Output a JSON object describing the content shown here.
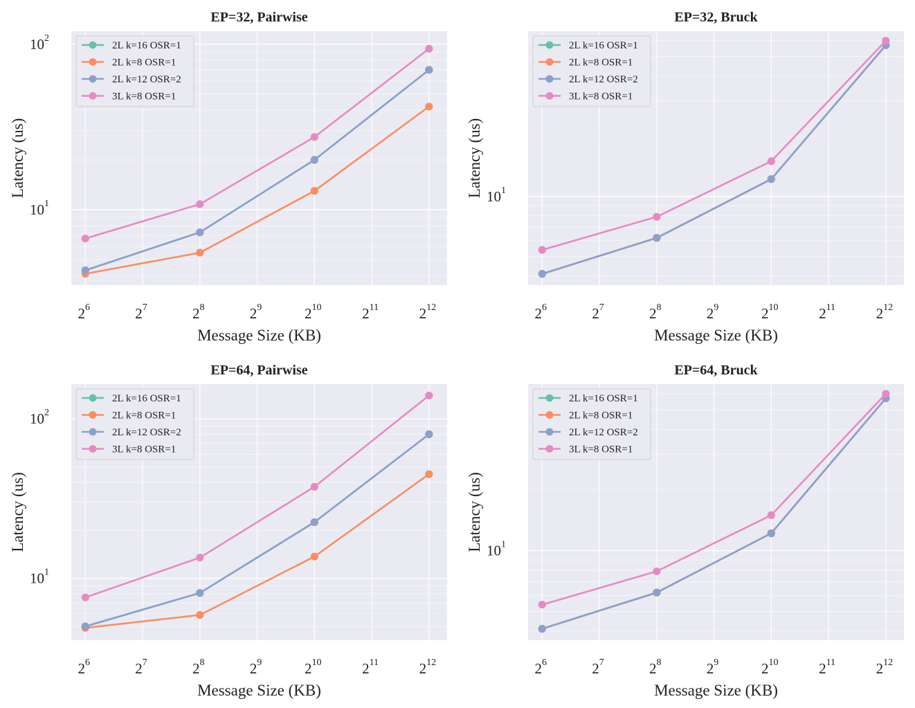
{
  "figure": {
    "series_colors": {
      "2L k=16 OSR=1": "#66c2a5",
      "2L k=8 OSR=1": "#fc8d62",
      "2L k=12 OSR=2": "#8da0cb",
      "3L k=8 OSR=1": "#e78ac3"
    },
    "background": "#eaeaf2",
    "grid_color": "#ffffff"
  },
  "chart_data": [
    {
      "type": "line",
      "title": "EP=32, Pairwise",
      "xlabel": "Message Size (KB)",
      "ylabel": "Latency (us)",
      "xscale": "log2",
      "yscale": "log10",
      "x": [
        64,
        256,
        1024,
        4096
      ],
      "xlim": [
        54,
        5100
      ],
      "ylim": [
        3.5,
        120
      ],
      "xticks": [
        {
          "base": "2",
          "exp": "6"
        },
        {
          "base": "2",
          "exp": "7"
        },
        {
          "base": "2",
          "exp": "8"
        },
        {
          "base": "2",
          "exp": "9"
        },
        {
          "base": "2",
          "exp": "10"
        },
        {
          "base": "2",
          "exp": "11"
        },
        {
          "base": "2",
          "exp": "12"
        }
      ],
      "yticks": [
        {
          "base": "10",
          "exp": "1"
        },
        {
          "base": "10",
          "exp": "2"
        }
      ],
      "legend": "upper-left",
      "grid": true,
      "series": [
        {
          "name": "2L k=16 OSR=1",
          "values": [
            4.3,
            7.3,
            20,
            70
          ]
        },
        {
          "name": "2L k=8 OSR=1",
          "values": [
            4.1,
            5.5,
            13,
            42
          ]
        },
        {
          "name": "2L k=12 OSR=2",
          "values": [
            4.3,
            7.3,
            20,
            70
          ]
        },
        {
          "name": "3L k=8 OSR=1",
          "values": [
            6.7,
            10.8,
            27.5,
            94
          ]
        }
      ]
    },
    {
      "type": "line",
      "title": "EP=32, Bruck",
      "xlabel": "Message Size (KB)",
      "ylabel": "Latency (us)",
      "xscale": "log2",
      "yscale": "log10",
      "x": [
        64,
        256,
        1024,
        4096
      ],
      "xlim": [
        54,
        5100
      ],
      "ylim": [
        3.6,
        67
      ],
      "xticks": [
        {
          "base": "2",
          "exp": "6"
        },
        {
          "base": "2",
          "exp": "7"
        },
        {
          "base": "2",
          "exp": "8"
        },
        {
          "base": "2",
          "exp": "9"
        },
        {
          "base": "2",
          "exp": "10"
        },
        {
          "base": "2",
          "exp": "11"
        },
        {
          "base": "2",
          "exp": "12"
        }
      ],
      "yticks": [
        {
          "base": "10",
          "exp": "1"
        }
      ],
      "legend": "upper-left",
      "grid": true,
      "series": [
        {
          "name": "2L k=16 OSR=1",
          "values": [
            4.1,
            6.2,
            12.2,
            57
          ]
        },
        {
          "name": "2L k=8 OSR=1",
          "values": [
            4.1,
            6.2,
            12.2,
            57
          ]
        },
        {
          "name": "2L k=12 OSR=2",
          "values": [
            4.1,
            6.2,
            12.2,
            57
          ]
        },
        {
          "name": "3L k=8 OSR=1",
          "values": [
            5.4,
            7.9,
            15,
            60
          ]
        }
      ]
    },
    {
      "type": "line",
      "title": "EP=64, Pairwise",
      "xlabel": "Message Size (KB)",
      "ylabel": "Latency (us)",
      "xscale": "log2",
      "yscale": "log10",
      "x": [
        64,
        256,
        1024,
        4096
      ],
      "xlim": [
        54,
        5100
      ],
      "ylim": [
        4.1,
        165
      ],
      "xticks": [
        {
          "base": "2",
          "exp": "6"
        },
        {
          "base": "2",
          "exp": "7"
        },
        {
          "base": "2",
          "exp": "8"
        },
        {
          "base": "2",
          "exp": "9"
        },
        {
          "base": "2",
          "exp": "10"
        },
        {
          "base": "2",
          "exp": "11"
        },
        {
          "base": "2",
          "exp": "12"
        }
      ],
      "yticks": [
        {
          "base": "10",
          "exp": "1"
        },
        {
          "base": "10",
          "exp": "2"
        }
      ],
      "legend": "upper-left",
      "grid": true,
      "series": [
        {
          "name": "2L k=16 OSR=1",
          "values": [
            5.0,
            8.1,
            22.5,
            80
          ]
        },
        {
          "name": "2L k=8 OSR=1",
          "values": [
            4.9,
            5.9,
            13.7,
            45
          ]
        },
        {
          "name": "2L k=12 OSR=2",
          "values": [
            5.0,
            8.1,
            22.5,
            80
          ]
        },
        {
          "name": "3L k=8 OSR=1",
          "values": [
            7.6,
            13.5,
            37.5,
            140
          ]
        }
      ]
    },
    {
      "type": "line",
      "title": "EP=64, Bruck",
      "xlabel": "Message Size (KB)",
      "ylabel": "Latency (us)",
      "xscale": "log2",
      "yscale": "log10",
      "x": [
        64,
        256,
        1024,
        4096
      ],
      "xlim": [
        54,
        5100
      ],
      "ylim": [
        3.6,
        67
      ],
      "xticks": [
        {
          "base": "2",
          "exp": "6"
        },
        {
          "base": "2",
          "exp": "7"
        },
        {
          "base": "2",
          "exp": "8"
        },
        {
          "base": "2",
          "exp": "9"
        },
        {
          "base": "2",
          "exp": "10"
        },
        {
          "base": "2",
          "exp": "11"
        },
        {
          "base": "2",
          "exp": "12"
        }
      ],
      "yticks": [
        {
          "base": "10",
          "exp": "1"
        }
      ],
      "legend": "upper-left",
      "grid": true,
      "series": [
        {
          "name": "2L k=16 OSR=1",
          "values": [
            4.1,
            6.2,
            12.2,
            57
          ]
        },
        {
          "name": "2L k=8 OSR=1",
          "values": [
            4.1,
            6.2,
            12.2,
            57
          ]
        },
        {
          "name": "2L k=12 OSR=2",
          "values": [
            4.1,
            6.2,
            12.2,
            57
          ]
        },
        {
          "name": "3L k=8 OSR=1",
          "values": [
            5.4,
            7.9,
            15,
            60
          ]
        }
      ]
    }
  ]
}
